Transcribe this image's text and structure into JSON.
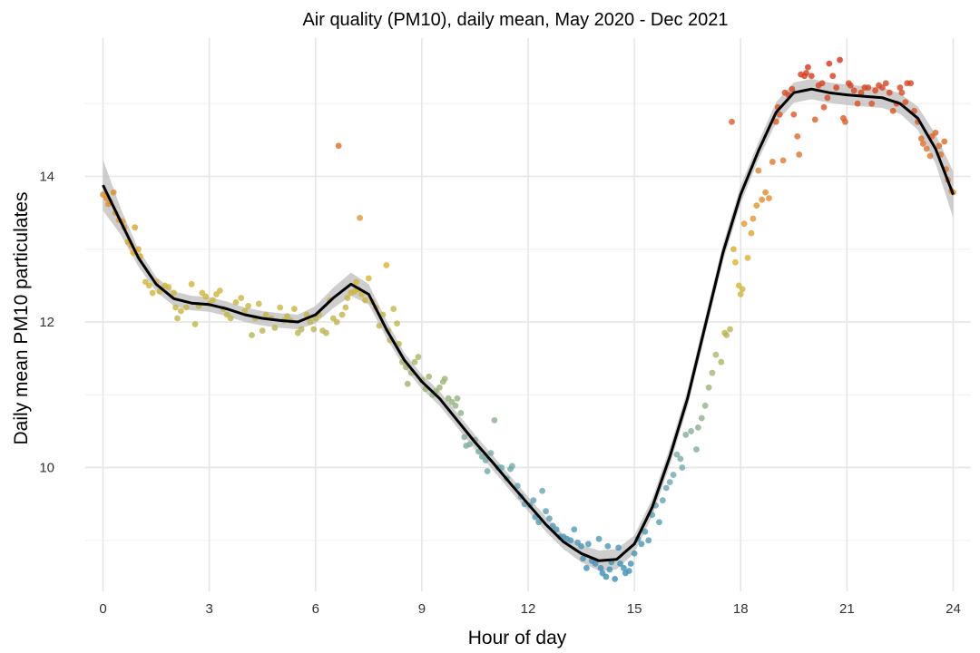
{
  "chart_data": {
    "type": "scatter",
    "title": "Air quality (PM10), daily mean, May 2020 - Dec 2021",
    "xlabel": "Hour of day",
    "ylabel": "Daily mean PM10 particulates",
    "xlim": [
      -0.5,
      24.5
    ],
    "ylim": [
      8.3,
      15.9
    ],
    "x_ticks": [
      0,
      3,
      6,
      9,
      12,
      15,
      18,
      21,
      24
    ],
    "y_ticks": [
      10,
      12,
      14
    ],
    "y_minor_ticks": [
      9,
      11,
      13,
      15
    ],
    "grid": true,
    "legend": "none",
    "colors": {
      "smooth_line": "#000000",
      "confidence_band": "#bdbdbd",
      "point_scale": [
        "#3a8fb7",
        "#6fa9b0",
        "#a6b56a",
        "#dcb52a",
        "#e07a2a",
        "#d9301a"
      ],
      "grid": "#e6e6e6"
    },
    "series": [
      {
        "kind": "points",
        "values": [
          [
            0.0,
            13.75
          ],
          [
            0.1,
            13.7
          ],
          [
            0.15,
            13.62
          ],
          [
            0.2,
            13.65
          ],
          [
            0.3,
            13.78
          ],
          [
            0.35,
            13.5
          ],
          [
            0.45,
            13.4
          ],
          [
            0.55,
            13.38
          ],
          [
            0.6,
            13.3
          ],
          [
            0.7,
            13.1
          ],
          [
            0.8,
            13.05
          ],
          [
            0.85,
            12.95
          ],
          [
            0.9,
            13.3
          ],
          [
            1.0,
            13.0
          ],
          [
            1.05,
            12.9
          ],
          [
            1.2,
            12.55
          ],
          [
            1.3,
            12.5
          ],
          [
            1.4,
            12.4
          ],
          [
            1.5,
            12.55
          ],
          [
            1.6,
            12.42
          ],
          [
            1.75,
            12.5
          ],
          [
            1.85,
            12.48
          ],
          [
            2.0,
            12.4
          ],
          [
            2.05,
            12.2
          ],
          [
            2.1,
            12.05
          ],
          [
            2.2,
            12.15
          ],
          [
            2.35,
            12.2
          ],
          [
            2.5,
            12.52
          ],
          [
            2.6,
            11.97
          ],
          [
            2.7,
            12.22
          ],
          [
            2.8,
            12.4
          ],
          [
            2.9,
            12.35
          ],
          [
            3.0,
            12.25
          ],
          [
            3.1,
            12.3
          ],
          [
            3.2,
            12.38
          ],
          [
            3.3,
            12.43
          ],
          [
            3.4,
            12.18
          ],
          [
            3.5,
            12.1
          ],
          [
            3.6,
            12.05
          ],
          [
            3.75,
            12.27
          ],
          [
            3.9,
            12.33
          ],
          [
            4.0,
            12.15
          ],
          [
            4.1,
            12.22
          ],
          [
            4.2,
            11.82
          ],
          [
            4.3,
            12.05
          ],
          [
            4.4,
            12.25
          ],
          [
            4.5,
            11.88
          ],
          [
            4.6,
            12.1
          ],
          [
            4.75,
            12.05
          ],
          [
            4.85,
            11.92
          ],
          [
            5.0,
            12.2
          ],
          [
            5.1,
            12.02
          ],
          [
            5.2,
            12.08
          ],
          [
            5.3,
            12.02
          ],
          [
            5.4,
            12.18
          ],
          [
            5.5,
            11.85
          ],
          [
            5.6,
            11.9
          ],
          [
            5.75,
            12.1
          ],
          [
            5.85,
            12.0
          ],
          [
            5.95,
            11.9
          ],
          [
            6.0,
            12.05
          ],
          [
            6.1,
            12.1
          ],
          [
            6.2,
            11.88
          ],
          [
            6.3,
            11.85
          ],
          [
            6.4,
            12.3
          ],
          [
            6.5,
            12.05
          ],
          [
            6.6,
            12.0
          ],
          [
            6.65,
            14.42
          ],
          [
            6.75,
            12.1
          ],
          [
            6.85,
            12.2
          ],
          [
            6.9,
            12.33
          ],
          [
            7.0,
            12.4
          ],
          [
            7.1,
            12.42
          ],
          [
            7.15,
            12.55
          ],
          [
            7.2,
            12.45
          ],
          [
            7.25,
            13.43
          ],
          [
            7.3,
            12.38
          ],
          [
            7.4,
            12.3
          ],
          [
            7.5,
            12.6
          ],
          [
            7.6,
            12.28
          ],
          [
            7.7,
            12.2
          ],
          [
            7.8,
            11.95
          ],
          [
            7.9,
            12.1
          ],
          [
            8.0,
            12.78
          ],
          [
            8.05,
            11.88
          ],
          [
            8.1,
            11.75
          ],
          [
            8.2,
            12.18
          ],
          [
            8.3,
            11.98
          ],
          [
            8.35,
            11.7
          ],
          [
            8.45,
            11.45
          ],
          [
            8.55,
            11.38
          ],
          [
            8.6,
            11.15
          ],
          [
            8.7,
            11.3
          ],
          [
            8.8,
            11.45
          ],
          [
            8.9,
            11.52
          ],
          [
            9.0,
            11.2
          ],
          [
            9.1,
            11.08
          ],
          [
            9.2,
            11.25
          ],
          [
            9.3,
            11.0
          ],
          [
            9.4,
            11.05
          ],
          [
            9.5,
            11.1
          ],
          [
            9.6,
            11.18
          ],
          [
            9.65,
            11.22
          ],
          [
            9.75,
            10.95
          ],
          [
            9.85,
            10.9
          ],
          [
            9.95,
            10.85
          ],
          [
            10.0,
            10.95
          ],
          [
            10.1,
            10.75
          ],
          [
            10.2,
            10.42
          ],
          [
            10.25,
            10.3
          ],
          [
            10.35,
            10.32
          ],
          [
            10.5,
            10.38
          ],
          [
            10.6,
            10.22
          ],
          [
            10.7,
            10.15
          ],
          [
            10.8,
            10.1
          ],
          [
            10.85,
            9.95
          ],
          [
            10.95,
            10.2
          ],
          [
            11.05,
            10.65
          ],
          [
            11.15,
            10.0
          ],
          [
            11.25,
            10.0
          ],
          [
            11.4,
            9.85
          ],
          [
            11.5,
            9.98
          ],
          [
            11.55,
            10.02
          ],
          [
            11.7,
            9.75
          ],
          [
            11.8,
            9.6
          ],
          [
            11.9,
            9.5
          ],
          [
            12.05,
            9.48
          ],
          [
            12.15,
            9.55
          ],
          [
            12.2,
            9.32
          ],
          [
            12.3,
            9.25
          ],
          [
            12.4,
            9.68
          ],
          [
            12.5,
            9.4
          ],
          [
            12.6,
            9.3
          ],
          [
            12.7,
            9.2
          ],
          [
            12.8,
            9.15
          ],
          [
            12.9,
            9.05
          ],
          [
            13.0,
            9.05
          ],
          [
            13.1,
            9.02
          ],
          [
            13.2,
            9.0
          ],
          [
            13.3,
            9.15
          ],
          [
            13.4,
            8.97
          ],
          [
            13.5,
            8.92
          ],
          [
            13.55,
            8.75
          ],
          [
            13.65,
            8.62
          ],
          [
            13.7,
            8.95
          ],
          [
            13.8,
            8.72
          ],
          [
            13.9,
            8.68
          ],
          [
            14.0,
            9.02
          ],
          [
            14.05,
            8.62
          ],
          [
            14.1,
            8.55
          ],
          [
            14.2,
            8.5
          ],
          [
            14.25,
            8.92
          ],
          [
            14.3,
            8.6
          ],
          [
            14.35,
            8.7
          ],
          [
            14.45,
            8.47
          ],
          [
            14.55,
            8.9
          ],
          [
            14.6,
            8.68
          ],
          [
            14.7,
            8.62
          ],
          [
            14.75,
            8.55
          ],
          [
            14.85,
            8.58
          ],
          [
            14.9,
            8.68
          ],
          [
            15.0,
            8.82
          ],
          [
            15.1,
            9.02
          ],
          [
            15.2,
            8.95
          ],
          [
            15.3,
            9.12
          ],
          [
            15.4,
            9.0
          ],
          [
            15.5,
            9.35
          ],
          [
            15.6,
            9.48
          ],
          [
            15.7,
            9.25
          ],
          [
            15.8,
            9.55
          ],
          [
            15.9,
            9.72
          ],
          [
            16.0,
            9.8
          ],
          [
            16.1,
            9.9
          ],
          [
            16.2,
            10.18
          ],
          [
            16.3,
            10.12
          ],
          [
            16.35,
            10.0
          ],
          [
            16.45,
            10.45
          ],
          [
            16.6,
            10.5
          ],
          [
            16.75,
            10.25
          ],
          [
            16.8,
            10.55
          ],
          [
            16.9,
            10.68
          ],
          [
            17.0,
            10.85
          ],
          [
            17.1,
            11.1
          ],
          [
            17.2,
            11.3
          ],
          [
            17.3,
            11.55
          ],
          [
            17.45,
            11.45
          ],
          [
            17.55,
            11.85
          ],
          [
            17.6,
            11.82
          ],
          [
            17.7,
            11.9
          ],
          [
            17.75,
            14.75
          ],
          [
            17.8,
            13.0
          ],
          [
            17.85,
            12.82
          ],
          [
            17.95,
            12.5
          ],
          [
            18.0,
            12.38
          ],
          [
            18.05,
            12.45
          ],
          [
            18.1,
            13.35
          ],
          [
            18.2,
            12.88
          ],
          [
            18.3,
            13.22
          ],
          [
            18.35,
            13.42
          ],
          [
            18.45,
            13.6
          ],
          [
            18.5,
            14.08
          ],
          [
            18.6,
            13.68
          ],
          [
            18.7,
            13.78
          ],
          [
            18.8,
            13.7
          ],
          [
            18.9,
            14.2
          ],
          [
            19.0,
            14.75
          ],
          [
            19.05,
            14.95
          ],
          [
            19.1,
            14.85
          ],
          [
            19.2,
            14.22
          ],
          [
            19.25,
            15.15
          ],
          [
            19.35,
            15.12
          ],
          [
            19.45,
            15.2
          ],
          [
            19.5,
            14.85
          ],
          [
            19.6,
            14.55
          ],
          [
            19.65,
            14.3
          ],
          [
            19.7,
            15.4
          ],
          [
            19.8,
            15.38
          ],
          [
            19.85,
            15.42
          ],
          [
            19.9,
            15.5
          ],
          [
            20.0,
            15.38
          ],
          [
            20.1,
            14.78
          ],
          [
            20.2,
            15.25
          ],
          [
            20.3,
            15.28
          ],
          [
            20.35,
            14.95
          ],
          [
            20.45,
            15.08
          ],
          [
            20.5,
            15.55
          ],
          [
            20.6,
            15.38
          ],
          [
            20.7,
            15.22
          ],
          [
            20.8,
            15.6
          ],
          [
            20.9,
            14.8
          ],
          [
            20.95,
            14.75
          ],
          [
            21.05,
            15.28
          ],
          [
            21.1,
            15.25
          ],
          [
            21.2,
            15.18
          ],
          [
            21.3,
            15.0
          ],
          [
            21.4,
            15.15
          ],
          [
            21.5,
            15.22
          ],
          [
            21.6,
            15.22
          ],
          [
            21.7,
            15.0
          ],
          [
            21.8,
            15.18
          ],
          [
            21.9,
            15.25
          ],
          [
            22.0,
            15.22
          ],
          [
            22.1,
            15.28
          ],
          [
            22.2,
            15.15
          ],
          [
            22.3,
            14.9
          ],
          [
            22.4,
            15.0
          ],
          [
            22.5,
            15.22
          ],
          [
            22.55,
            15.15
          ],
          [
            22.65,
            15.02
          ],
          [
            22.7,
            15.28
          ],
          [
            22.8,
            15.28
          ],
          [
            22.9,
            14.9
          ],
          [
            23.0,
            14.75
          ],
          [
            23.1,
            14.52
          ],
          [
            23.15,
            14.45
          ],
          [
            23.25,
            14.38
          ],
          [
            23.35,
            14.28
          ],
          [
            23.4,
            14.55
          ],
          [
            23.5,
            14.6
          ],
          [
            23.6,
            14.42
          ],
          [
            23.65,
            14.3
          ],
          [
            23.75,
            14.48
          ],
          [
            23.8,
            14.1
          ],
          [
            23.85,
            13.95
          ],
          [
            23.95,
            13.8
          ],
          [
            24.0,
            13.78
          ]
        ]
      },
      {
        "kind": "smooth",
        "x": [
          0,
          0.5,
          1,
          1.5,
          2,
          2.5,
          3,
          3.5,
          4,
          4.5,
          5,
          5.5,
          6,
          6.5,
          7,
          7.5,
          8,
          8.5,
          9,
          9.5,
          10,
          10.5,
          11,
          11.5,
          12,
          12.5,
          13,
          13.5,
          14,
          14.5,
          15,
          15.5,
          16,
          16.5,
          17,
          17.5,
          18,
          18.5,
          19,
          19.5,
          20,
          20.5,
          21,
          21.5,
          22,
          22.5,
          23,
          23.5,
          24
        ],
        "y": [
          13.88,
          13.38,
          12.88,
          12.52,
          12.32,
          12.26,
          12.24,
          12.18,
          12.1,
          12.05,
          12.02,
          12.0,
          12.1,
          12.33,
          12.52,
          12.38,
          11.9,
          11.48,
          11.18,
          10.95,
          10.65,
          10.35,
          10.07,
          9.78,
          9.5,
          9.22,
          8.98,
          8.82,
          8.72,
          8.74,
          8.95,
          9.45,
          10.15,
          10.95,
          11.95,
          12.95,
          13.75,
          14.35,
          14.88,
          15.15,
          15.2,
          15.15,
          15.12,
          15.1,
          15.08,
          15.0,
          14.8,
          14.38,
          13.75
        ],
        "band": [
          0.35,
          0.18,
          0.12,
          0.1,
          0.1,
          0.1,
          0.1,
          0.1,
          0.1,
          0.1,
          0.1,
          0.1,
          0.12,
          0.14,
          0.16,
          0.14,
          0.12,
          0.1,
          0.1,
          0.1,
          0.1,
          0.1,
          0.1,
          0.1,
          0.1,
          0.1,
          0.1,
          0.12,
          0.14,
          0.14,
          0.12,
          0.12,
          0.12,
          0.12,
          0.12,
          0.12,
          0.12,
          0.12,
          0.14,
          0.14,
          0.14,
          0.14,
          0.14,
          0.14,
          0.14,
          0.14,
          0.16,
          0.2,
          0.32
        ]
      }
    ]
  }
}
